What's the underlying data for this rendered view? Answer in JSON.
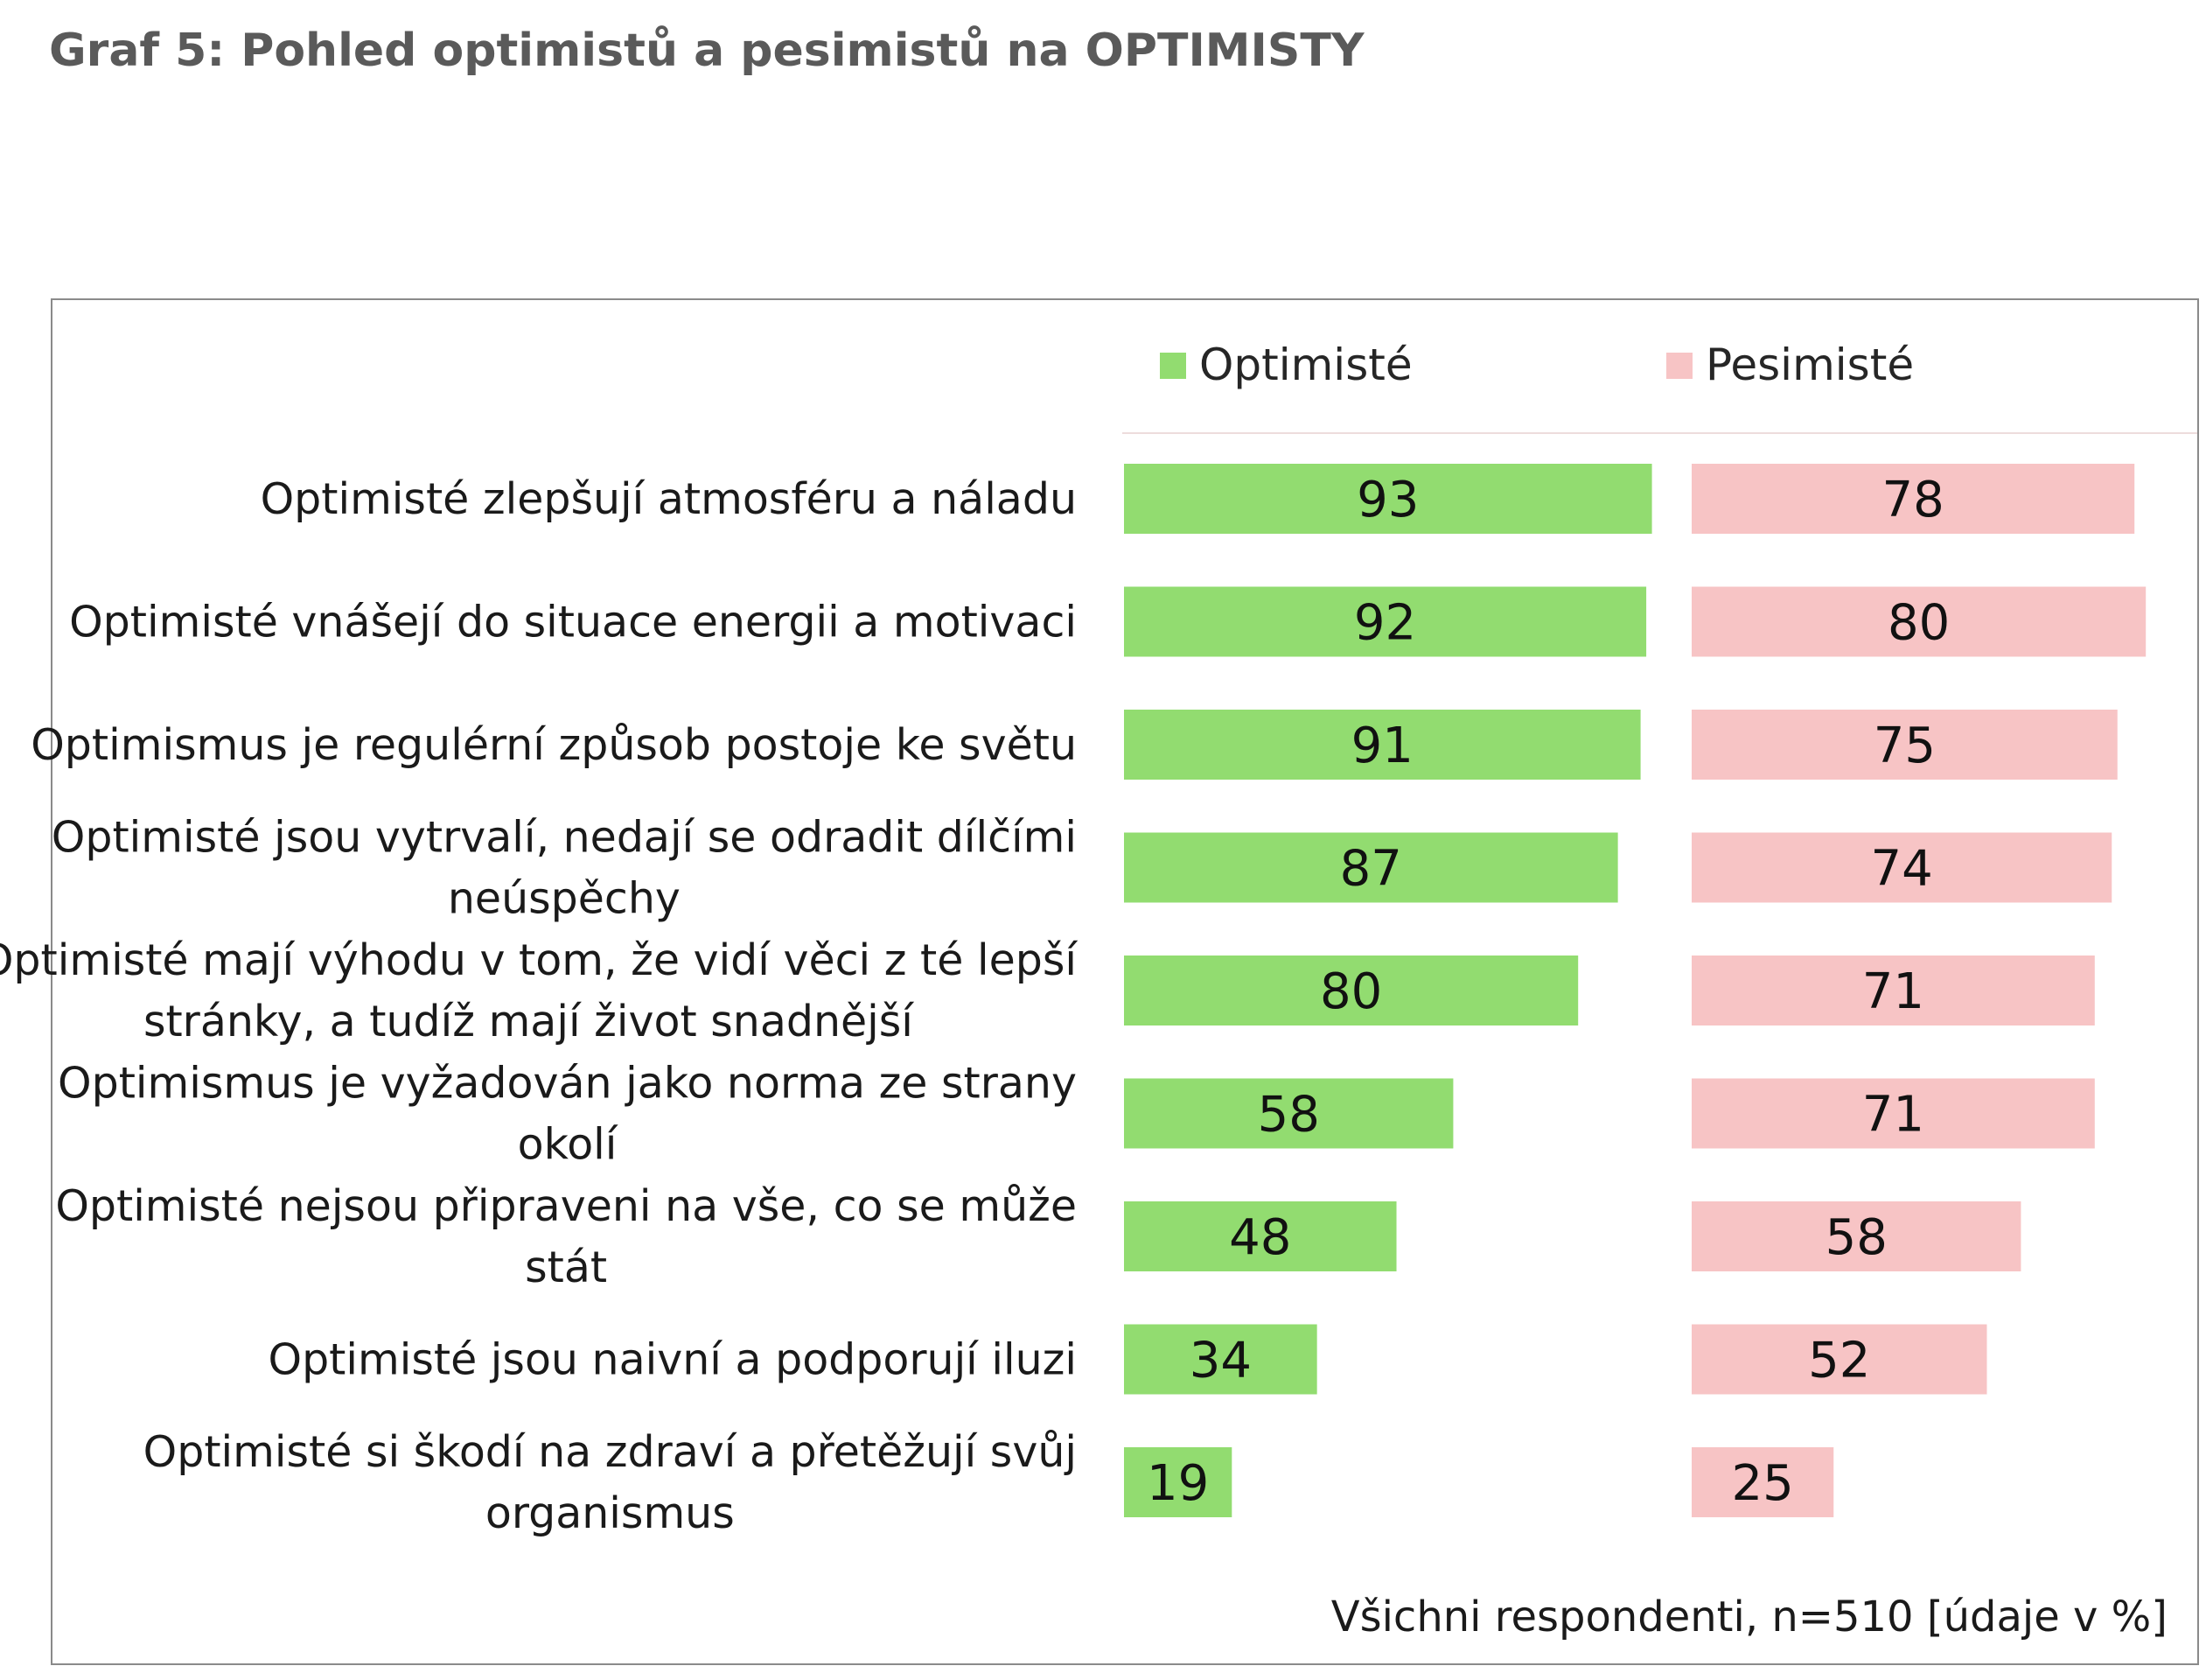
{
  "page": {
    "title": "Graf 5: Pohled optimistů a pesimistů na OPTIMISTY"
  },
  "colors": {
    "optimists": "#92dc70",
    "pessimists": "#f7c4c5",
    "title": "#5a5a5a",
    "frame": "#8a8a8a"
  },
  "chart_data": {
    "type": "bar",
    "orientation": "horizontal",
    "layout": "two-panel",
    "title": "",
    "legend_placement": "top",
    "grid": false,
    "categories": [
      [
        "Optimisté zlepšují atmosféru a náladu"
      ],
      [
        "Optimisté vnášejí do situace energii a motivaci"
      ],
      [
        "Optimismus je regulérní způsob postoje ke světu"
      ],
      [
        "Optimisté jsou vytrvalí, nedají se odradit dílčími",
        "neúspěchy"
      ],
      [
        "Optimisté mají výhodu v tom, že vidí věci z té lepší",
        "stránky, a tudíž mají život snadnější"
      ],
      [
        "Optimismus je vyžadován jako norma ze strany",
        "okolí"
      ],
      [
        "Optimisté nejsou připraveni na vše, co se může",
        "stát"
      ],
      [
        "Optimisté jsou naivní a podporují iluzi"
      ],
      [
        "Optimisté si škodí na zdraví a přetěžují svůj",
        "organismus"
      ]
    ],
    "series": [
      {
        "name": "Optimisté",
        "values": [
          93,
          92,
          91,
          87,
          80,
          58,
          48,
          34,
          19
        ]
      },
      {
        "name": "Pesimisté",
        "values": [
          78,
          80,
          75,
          74,
          71,
          71,
          58,
          52,
          25
        ]
      }
    ],
    "xlim": [
      0,
      100
    ],
    "note": "Všichni respondenti, n=510 [údaje v %]"
  }
}
